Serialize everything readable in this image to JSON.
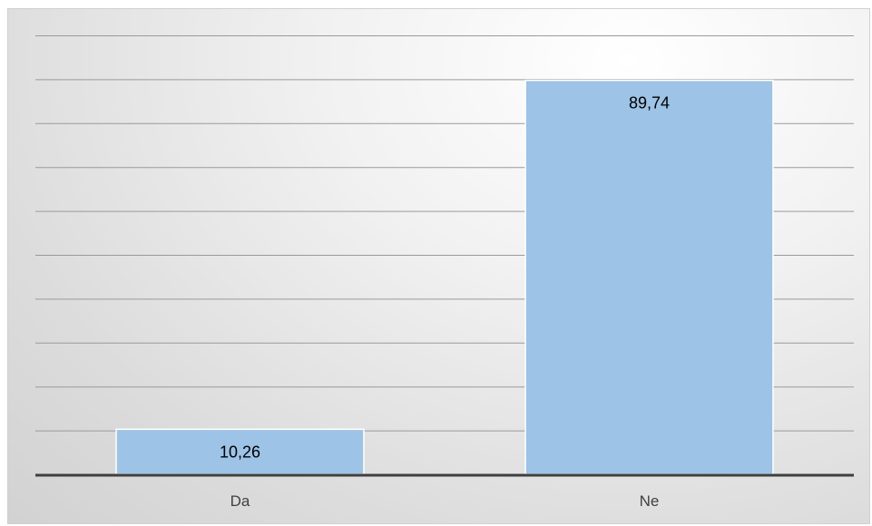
{
  "chart_data": {
    "type": "bar",
    "categories": [
      "Da",
      "Ne"
    ],
    "values": [
      10.26,
      89.74
    ],
    "data_labels": [
      "10,26",
      "89,74"
    ],
    "title": "",
    "xlabel": "",
    "ylabel": "",
    "ylim": [
      0,
      100
    ],
    "grid": true,
    "legend": "none",
    "colors": {
      "bar": "#9dc3e6",
      "bar_edge": "#ffffff",
      "gridline": "#9a9a9a",
      "axis": "#3f3f3f"
    }
  }
}
